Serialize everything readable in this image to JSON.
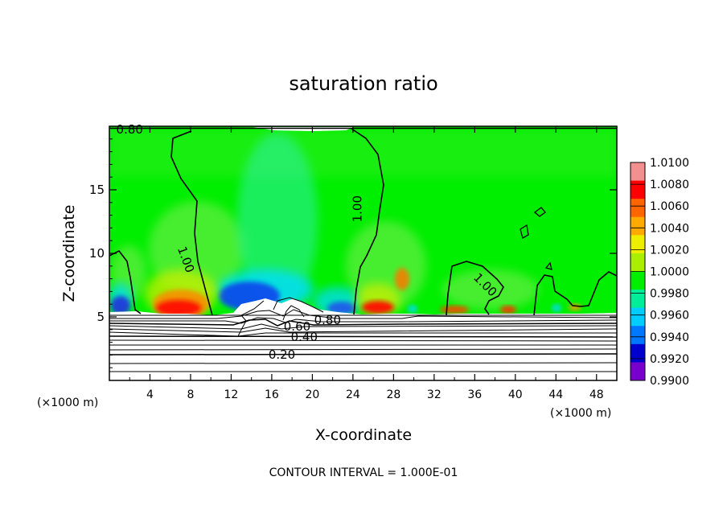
{
  "chart_data": {
    "type": "heatmap",
    "title": "saturation ratio",
    "xlabel": "X-coordinate",
    "ylabel": "Z-coordinate",
    "x_unit_left": "(×1000 m)",
    "x_unit_right": "(×1000 m)",
    "xlim": [
      0,
      50
    ],
    "ylim": [
      0,
      20
    ],
    "xticks": [
      4,
      8,
      12,
      16,
      20,
      24,
      28,
      32,
      36,
      40,
      44,
      48
    ],
    "yticks": [
      5,
      10,
      15
    ],
    "footer": "CONTOUR INTERVAL = 1.000E-01",
    "colorbar": {
      "range": [
        0.99,
        1.01
      ],
      "labels": [
        "1.0100",
        "1.0080",
        "1.0060",
        "1.0040",
        "1.0020",
        "1.0000",
        "0.9980",
        "0.9960",
        "0.9940",
        "0.9920",
        "0.9900"
      ],
      "colors": [
        "#f29090",
        "#ff0000",
        "#ff6600",
        "#ffaa00",
        "#eeee00",
        "#aaee00",
        "#00ee00",
        "#00ee99",
        "#00ccff",
        "#0077ff",
        "#0000cc",
        "#7700cc"
      ]
    },
    "contour_labels": [
      {
        "text": "0.80",
        "x": 2.0,
        "y": 19.7
      },
      {
        "text": "1.00",
        "x": 7.5,
        "y": 9.5
      },
      {
        "text": "1.00",
        "x": 24.5,
        "y": 13.5
      },
      {
        "text": "1.00",
        "x": 37.0,
        "y": 7.5
      },
      {
        "text": "0.80",
        "x": 21.5,
        "y": 4.7
      },
      {
        "text": "0.60",
        "x": 18.5,
        "y": 4.2
      },
      {
        "text": "0.40",
        "x": 19.2,
        "y": 3.4
      },
      {
        "text": "0.20",
        "x": 17.0,
        "y": 2.0
      }
    ]
  }
}
